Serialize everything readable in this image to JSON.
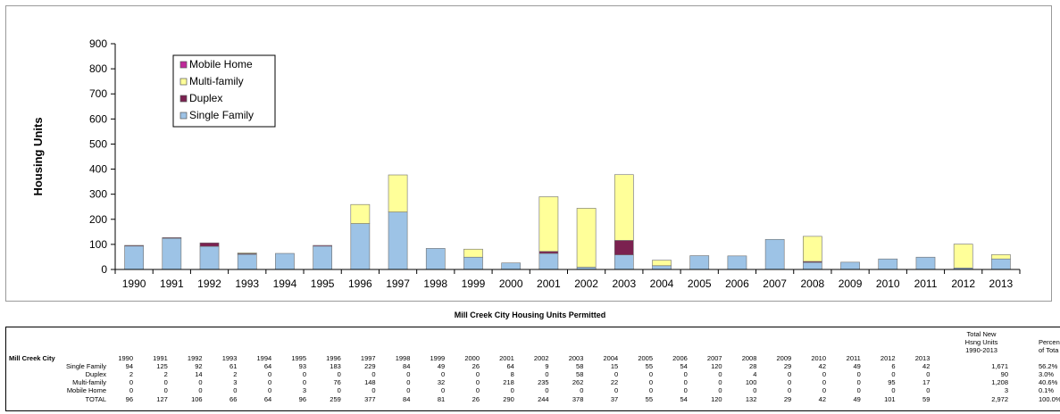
{
  "chart_data": {
    "type": "bar",
    "stacked": true,
    "ylabel": "Housing Units",
    "ylim": [
      0,
      900
    ],
    "yticks": [
      0,
      100,
      200,
      300,
      400,
      500,
      600,
      700,
      800,
      900
    ],
    "categories": [
      "1990",
      "1991",
      "1992",
      "1993",
      "1994",
      "1995",
      "1996",
      "1997",
      "1998",
      "1999",
      "2000",
      "2001",
      "2002",
      "2003",
      "2004",
      "2005",
      "2006",
      "2007",
      "2008",
      "2009",
      "2010",
      "2011",
      "2012",
      "2013"
    ],
    "series": [
      {
        "name": "Single Family",
        "color": "#9dc3e6",
        "values": [
          94,
          125,
          92,
          61,
          64,
          93,
          183,
          229,
          84,
          49,
          26,
          64,
          9,
          58,
          15,
          55,
          54,
          120,
          28,
          29,
          42,
          49,
          6,
          42
        ]
      },
      {
        "name": "Duplex",
        "color": "#7b2150",
        "values": [
          2,
          2,
          14,
          2,
          0,
          0,
          0,
          0,
          0,
          0,
          0,
          8,
          0,
          58,
          0,
          0,
          0,
          0,
          4,
          0,
          0,
          0,
          0,
          0
        ]
      },
      {
        "name": "Multi-family",
        "color": "#ffff99",
        "values": [
          0,
          0,
          0,
          3,
          0,
          0,
          76,
          148,
          0,
          32,
          0,
          218,
          235,
          262,
          22,
          0,
          0,
          0,
          100,
          0,
          0,
          0,
          95,
          17
        ]
      },
      {
        "name": "Mobile Home",
        "color": "#c0299a",
        "values": [
          0,
          0,
          0,
          0,
          0,
          3,
          0,
          0,
          0,
          0,
          0,
          0,
          0,
          0,
          0,
          0,
          0,
          0,
          0,
          0,
          0,
          0,
          0,
          0
        ]
      }
    ],
    "legend_order": [
      "Mobile Home",
      "Multi-family",
      "Duplex",
      "Single Family"
    ],
    "legend_position": "top-left",
    "grid": false
  },
  "caption": "Mill Creek City Housing Units Permitted",
  "table": {
    "corner_label": "Mill Creek City",
    "years": [
      "1990",
      "1991",
      "1992",
      "1993",
      "1994",
      "1995",
      "1996",
      "1997",
      "1998",
      "1999",
      "2000",
      "2001",
      "2002",
      "2003",
      "2004",
      "2005",
      "2006",
      "2007",
      "2008",
      "2009",
      "2010",
      "2011",
      "2012",
      "2013"
    ],
    "total_header": [
      "Total New",
      "Hsng Units",
      "1990-2013"
    ],
    "percent_header": [
      "Percen",
      "of Tota"
    ],
    "rows": [
      {
        "label": "Single Family",
        "values": [
          "94",
          "125",
          "92",
          "61",
          "64",
          "93",
          "183",
          "229",
          "84",
          "49",
          "26",
          "64",
          "9",
          "58",
          "15",
          "55",
          "54",
          "120",
          "28",
          "29",
          "42",
          "49",
          "6",
          "42"
        ],
        "total": "1,671",
        "percent": "56.2%"
      },
      {
        "label": "Duplex",
        "values": [
          "2",
          "2",
          "14",
          "2",
          "0",
          "0",
          "0",
          "0",
          "0",
          "0",
          "0",
          "8",
          "0",
          "58",
          "0",
          "0",
          "0",
          "0",
          "4",
          "0",
          "0",
          "0",
          "0",
          "0"
        ],
        "total": "90",
        "percent": "3.0%"
      },
      {
        "label": "Multi-family",
        "values": [
          "0",
          "0",
          "0",
          "3",
          "0",
          "0",
          "76",
          "148",
          "0",
          "32",
          "0",
          "218",
          "235",
          "262",
          "22",
          "0",
          "0",
          "0",
          "100",
          "0",
          "0",
          "0",
          "95",
          "17"
        ],
        "total": "1,208",
        "percent": "40.6%"
      },
      {
        "label": "Mobile Home",
        "values": [
          "0",
          "0",
          "0",
          "0",
          "0",
          "3",
          "0",
          "0",
          "0",
          "0",
          "0",
          "0",
          "0",
          "0",
          "0",
          "0",
          "0",
          "0",
          "0",
          "0",
          "0",
          "0",
          "0",
          "0"
        ],
        "total": "3",
        "percent": "0.1%"
      },
      {
        "label": "TOTAL",
        "values": [
          "96",
          "127",
          "106",
          "66",
          "64",
          "96",
          "259",
          "377",
          "84",
          "81",
          "26",
          "290",
          "244",
          "378",
          "37",
          "55",
          "54",
          "120",
          "132",
          "29",
          "42",
          "49",
          "101",
          "59"
        ],
        "total": "2,972",
        "percent": "100.0%"
      }
    ]
  }
}
